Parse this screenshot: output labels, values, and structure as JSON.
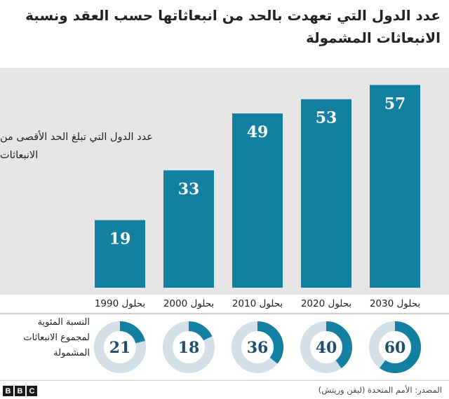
{
  "title": "عدد الدول التي تعهدت بالحد من انبعاثاتها حسب العقد ونسبة الانبعاثات المشمولة",
  "chart_data": [
    {
      "type": "bar",
      "title": "عدد الدول التي تعهدت بالحد من انبعاثاتها حسب العقد ونسبة الانبعاثات المشمولة",
      "legend_label": "عدد الدول التي تبلغ الحد الأقصى من الانبعاثات",
      "categories": [
        "بحلول 1990",
        "بحلول 2000",
        "بحلول 2010",
        "بحلول 2020",
        "بحلول 2030"
      ],
      "values": [
        19,
        33,
        49,
        53,
        57
      ],
      "ylim": [
        0,
        62
      ],
      "grid": false,
      "color": "#1380a1"
    },
    {
      "type": "pie",
      "label": "النسبة المئوية لمجموع الانبعاثات المشمولة",
      "categories": [
        "بحلول 1990",
        "بحلول 2000",
        "بحلول 2010",
        "بحلول 2020",
        "بحلول 2030"
      ],
      "values": [
        21,
        18,
        36,
        40,
        60
      ],
      "unit": "percent",
      "color": "#1380a1",
      "track_color": "#d3e0e8"
    }
  ],
  "source": "المصدر: الأمم المتحدة (ليفن وريتش)",
  "logo": [
    "B",
    "B",
    "C"
  ]
}
